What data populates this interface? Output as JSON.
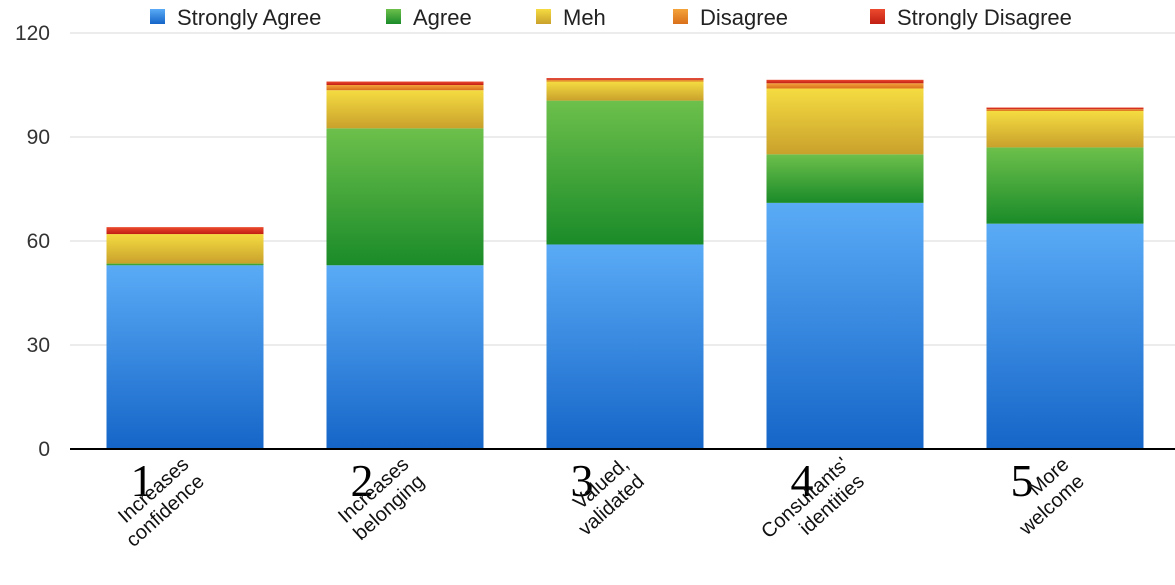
{
  "chart_data": {
    "type": "bar",
    "stacked": true,
    "categories": [
      {
        "number": "1",
        "label_lines": [
          "Increases",
          "confidence"
        ]
      },
      {
        "number": "2",
        "label_lines": [
          "Increases",
          "belonging"
        ]
      },
      {
        "number": "3",
        "label_lines": [
          "Valued,",
          "validated"
        ]
      },
      {
        "number": "4",
        "label_lines": [
          "Consultants'",
          "identities"
        ]
      },
      {
        "number": "5",
        "label_lines": [
          "More",
          "welcome"
        ]
      }
    ],
    "series": [
      {
        "name": "Strongly Agree",
        "color": "#3d8ee8",
        "color_light": "#5aabf6",
        "color_dark": "#1565c8",
        "values": [
          53,
          53,
          59,
          71,
          65
        ]
      },
      {
        "name": "Agree",
        "color": "#39a83f",
        "color_light": "#6dc04b",
        "color_dark": "#1a8b29",
        "values": [
          0.5,
          39.5,
          41.5,
          14,
          22
        ]
      },
      {
        "name": "Meh",
        "color": "#e6c23a",
        "color_light": "#f5dc41",
        "color_dark": "#c9a12c",
        "values": [
          8.5,
          11,
          5.5,
          19,
          10.5
        ]
      },
      {
        "name": "Disagree",
        "color": "#ee8a25",
        "color_light": "#f4a33a",
        "color_dark": "#d9701b",
        "values": [
          0,
          1.5,
          0.5,
          1.5,
          0.5
        ]
      },
      {
        "name": "Strongly Disagree",
        "color": "#e0301e",
        "color_light": "#ec4a2e",
        "color_dark": "#c11f13",
        "values": [
          2,
          1,
          0.5,
          1,
          0.5
        ]
      }
    ],
    "ylim": [
      0,
      120
    ],
    "yticks": [
      0,
      30,
      60,
      90,
      120
    ],
    "grid": true,
    "legend_position": "top",
    "title": "",
    "xlabel": "",
    "ylabel": ""
  }
}
